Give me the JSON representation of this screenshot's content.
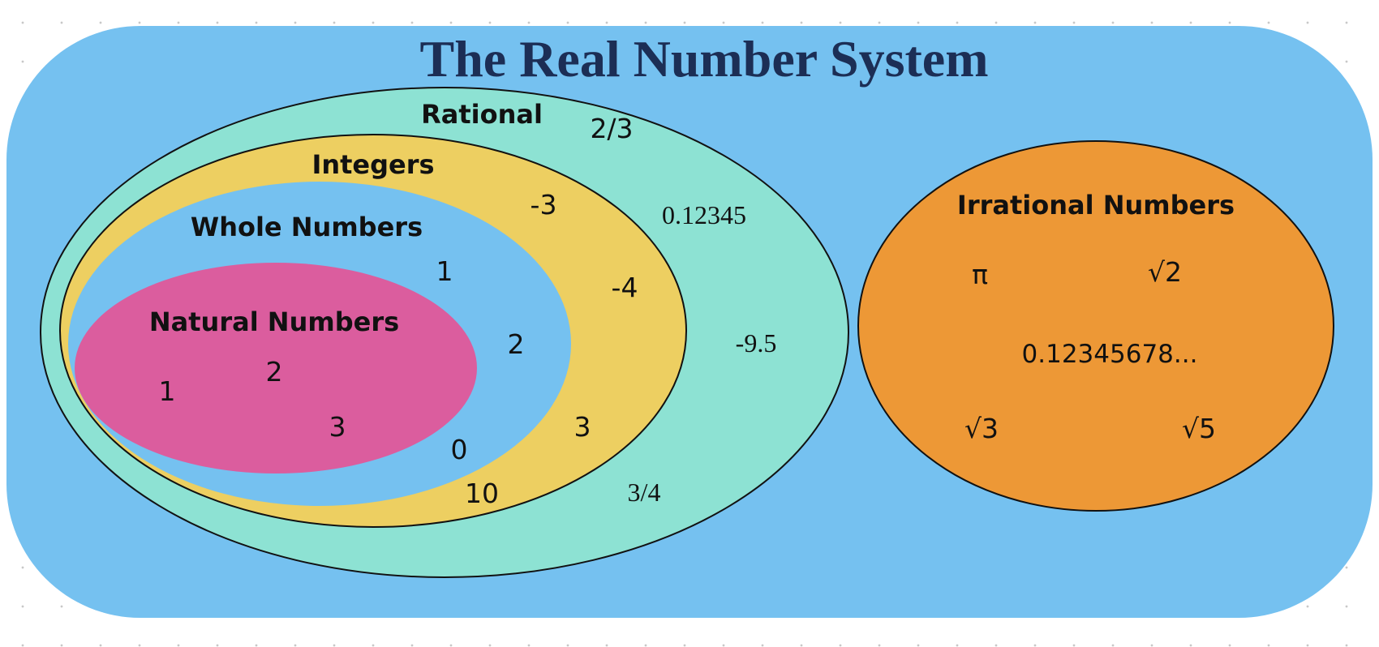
{
  "title": "The Real Number System",
  "colors": {
    "background_panel": "#75c1f0",
    "title": "#1c2e55",
    "rational": "#8de2d3",
    "integers": "#edcf61",
    "whole": "#75c1f0",
    "natural": "#db5d9e",
    "irrational": "#ed9836",
    "outline": "#111111",
    "text": "#111111"
  },
  "sets": {
    "rational": {
      "label": "Rational",
      "examples": [
        "2/3",
        "0.12345",
        "-9.5",
        "3/4"
      ]
    },
    "integers": {
      "label": "Integers",
      "examples": [
        "-3",
        "-4",
        "3",
        "10"
      ]
    },
    "whole": {
      "label": "Whole Numbers",
      "examples": [
        "1",
        "2",
        "0"
      ]
    },
    "natural": {
      "label": "Natural Numbers",
      "examples": [
        "1",
        "2",
        "3"
      ]
    },
    "irrational": {
      "label": "Irrational Numbers",
      "examples": [
        "π",
        "√2",
        "0.12345678...",
        "√3",
        "√5"
      ]
    }
  }
}
